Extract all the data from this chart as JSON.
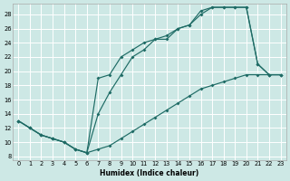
{
  "xlabel": "Humidex (Indice chaleur)",
  "bg_color": "#cde8e5",
  "line_color": "#1e6b65",
  "grid_color": "#b8d8d5",
  "xlim": [
    -0.5,
    23.5
  ],
  "ylim": [
    7.5,
    29.5
  ],
  "xticks": [
    0,
    1,
    2,
    3,
    4,
    5,
    6,
    7,
    8,
    9,
    10,
    11,
    12,
    13,
    14,
    15,
    16,
    17,
    18,
    19,
    20,
    21,
    22,
    23
  ],
  "yticks": [
    8,
    10,
    12,
    14,
    16,
    18,
    20,
    22,
    24,
    26,
    28
  ],
  "curves": [
    {
      "x": [
        0,
        1,
        2,
        3,
        4,
        5,
        6,
        7,
        8,
        9,
        10,
        11,
        12,
        13,
        14,
        15,
        16,
        17,
        18,
        19,
        20,
        21,
        22,
        23
      ],
      "y": [
        13,
        12,
        11,
        10.5,
        10,
        9,
        8.5,
        19,
        19.5,
        22,
        23,
        24,
        24.5,
        25,
        26,
        26.5,
        28.5,
        29,
        29,
        29,
        29,
        21,
        19.5,
        19.5
      ]
    },
    {
      "x": [
        0,
        1,
        2,
        3,
        4,
        5,
        6,
        7,
        8,
        9,
        10,
        11,
        12,
        13,
        14,
        15,
        16,
        17,
        18,
        19,
        20,
        21,
        22,
        23
      ],
      "y": [
        13,
        12,
        11,
        10.5,
        10,
        9,
        8.5,
        14,
        17,
        19.5,
        22,
        23,
        24.5,
        24.5,
        26,
        26.5,
        28,
        29,
        29,
        29,
        29,
        21,
        19.5,
        19.5
      ]
    },
    {
      "x": [
        0,
        1,
        2,
        3,
        4,
        5,
        6,
        7,
        8,
        9,
        10,
        11,
        12,
        13,
        14,
        15,
        16,
        17,
        18,
        19,
        20,
        21,
        22,
        23
      ],
      "y": [
        13,
        12,
        11,
        10.5,
        10,
        9,
        8.5,
        9,
        9.5,
        10.5,
        11.5,
        12.5,
        13.5,
        14.5,
        15.5,
        16.5,
        17.5,
        18,
        18.5,
        19,
        19.5,
        19.5,
        19.5,
        19.5
      ]
    }
  ]
}
